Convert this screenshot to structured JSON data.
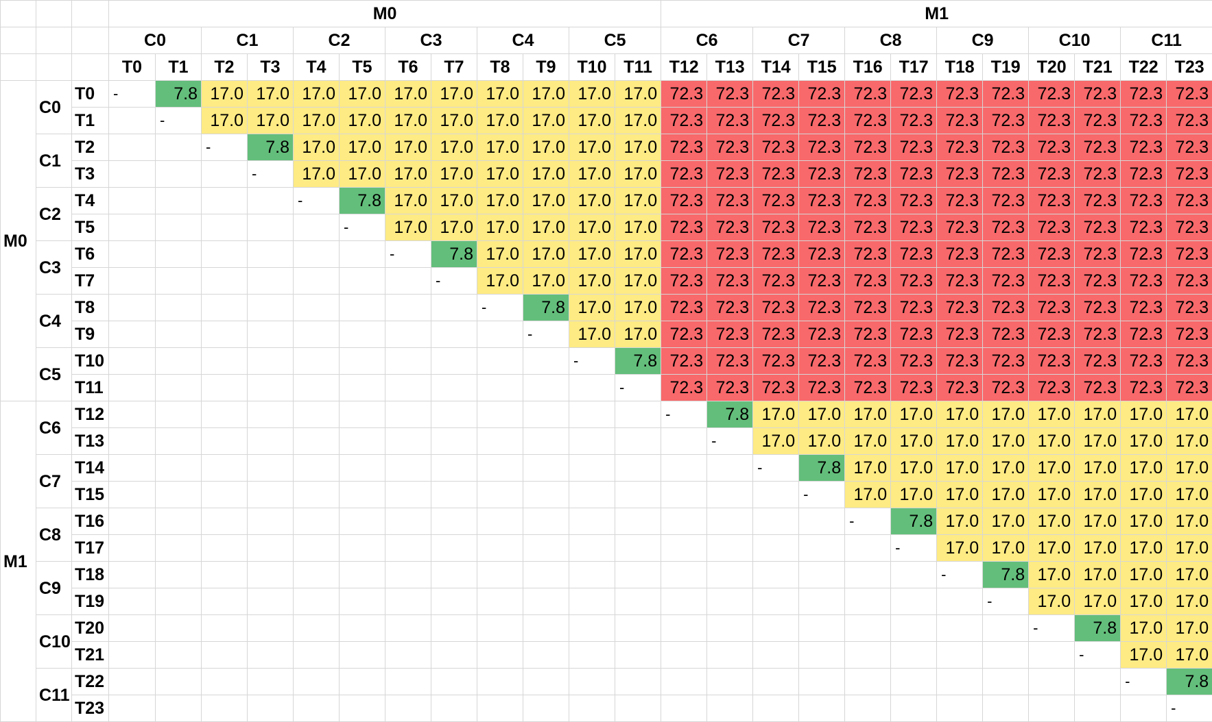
{
  "machines": [
    "M0",
    "M1"
  ],
  "cards": [
    "C0",
    "C1",
    "C2",
    "C3",
    "C4",
    "C5",
    "C6",
    "C7",
    "C8",
    "C9",
    "C10",
    "C11"
  ],
  "threads": [
    "T0",
    "T1",
    "T2",
    "T3",
    "T4",
    "T5",
    "T6",
    "T7",
    "T8",
    "T9",
    "T10",
    "T11",
    "T12",
    "T13",
    "T14",
    "T15",
    "T16",
    "T17",
    "T18",
    "T19",
    "T20",
    "T21",
    "T22",
    "T23"
  ],
  "values": {
    "self": "-",
    "same_card": "7.8",
    "same_machine": "17.0",
    "cross_machine": "72.3"
  },
  "colors": {
    "same_card": "#63be7b",
    "same_machine": "#ffeb84",
    "cross_machine": "#f8696b",
    "grid": "#d6d6d6"
  }
}
